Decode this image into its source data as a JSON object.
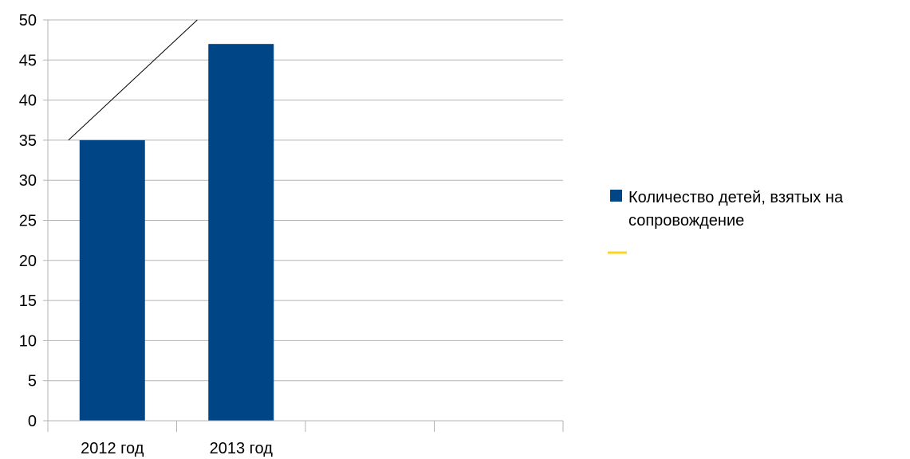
{
  "chart_data": {
    "type": "bar",
    "categories": [
      "2012 год",
      "2013 год",
      "",
      ""
    ],
    "series": [
      {
        "name": "Количество детей, взятых на сопровождение",
        "values": [
          35,
          47,
          null,
          null
        ],
        "color": "#004586"
      }
    ],
    "ylim": [
      0,
      50
    ],
    "yticks": [
      0,
      5,
      10,
      15,
      20,
      25,
      30,
      35,
      40,
      45,
      50
    ],
    "grid": true,
    "legend_position": "right",
    "legend": [
      {
        "lines": [
          "Количество детей, взятых на",
          "сопровождение"
        ],
        "marker": "square",
        "color": "#004586"
      },
      {
        "lines": [],
        "marker": "line",
        "color": "#ffd320"
      }
    ],
    "trendline": {
      "x": [
        0.16,
        1.16
      ],
      "y": [
        35,
        50
      ],
      "color": "#000000"
    }
  }
}
